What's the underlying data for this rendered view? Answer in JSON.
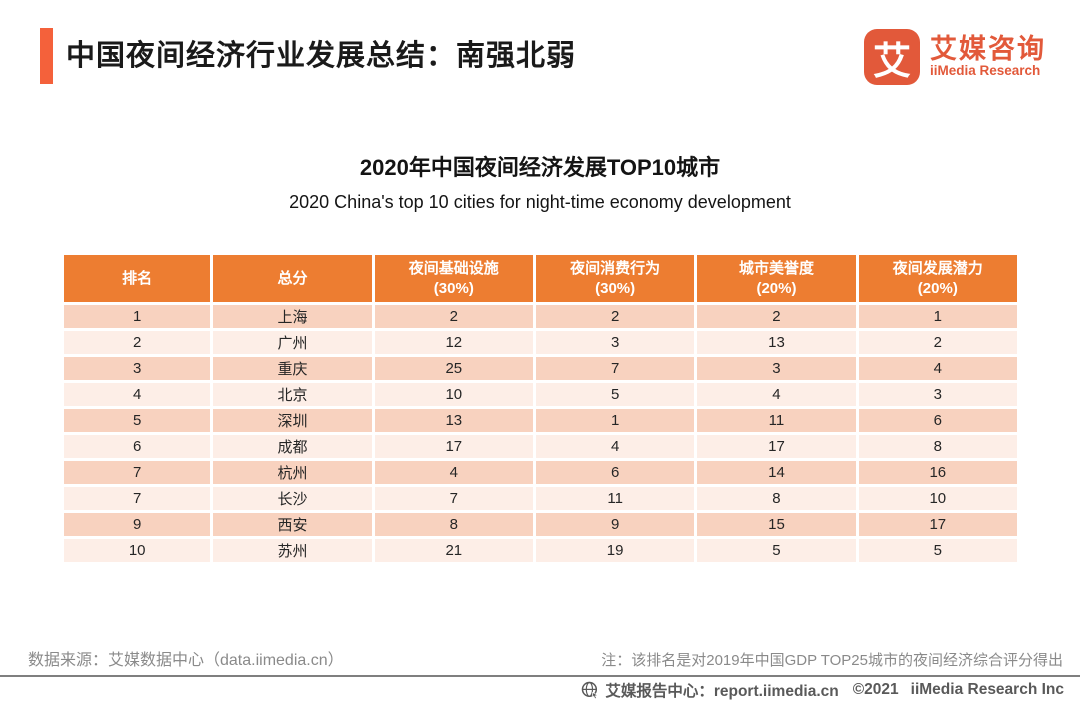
{
  "colors": {
    "accent": "#f4613b",
    "logo": "#e2593a",
    "table_header_bg": "#ed7d31",
    "row_odd": "#f8d2bf",
    "row_even": "#fdeee7",
    "footer_text": "#8a8a8a",
    "bottom_text": "#595959"
  },
  "header": {
    "title": "中国夜间经济行业发展总结：南强北弱",
    "logo": {
      "mark": "艾",
      "name_cn": "艾媒咨询",
      "name_en": "iiMedia Research"
    }
  },
  "chart_data": {
    "type": "table",
    "title": "2020年中国夜间经济发展TOP10城市",
    "subtitle": "2020 China's top 10 cities for night-time economy development",
    "columns": [
      {
        "label": "排名",
        "sub": ""
      },
      {
        "label": "总分",
        "sub": ""
      },
      {
        "label": "夜间基础设施",
        "sub": "(30%)"
      },
      {
        "label": "夜间消费行为",
        "sub": "(30%)"
      },
      {
        "label": "城市美誉度",
        "sub": "(20%)"
      },
      {
        "label": "夜间发展潜力",
        "sub": "(20%)"
      }
    ],
    "rows": [
      [
        "1",
        "上海",
        "2",
        "2",
        "2",
        "1"
      ],
      [
        "2",
        "广州",
        "12",
        "3",
        "13",
        "2"
      ],
      [
        "3",
        "重庆",
        "25",
        "7",
        "3",
        "4"
      ],
      [
        "4",
        "北京",
        "10",
        "5",
        "4",
        "3"
      ],
      [
        "5",
        "深圳",
        "13",
        "1",
        "11",
        "6"
      ],
      [
        "6",
        "成都",
        "17",
        "4",
        "17",
        "8"
      ],
      [
        "7",
        "杭州",
        "4",
        "6",
        "14",
        "16"
      ],
      [
        "7",
        "长沙",
        "7",
        "11",
        "8",
        "10"
      ],
      [
        "9",
        "西安",
        "8",
        "9",
        "15",
        "17"
      ],
      [
        "10",
        "苏州",
        "21",
        "19",
        "5",
        "5"
      ]
    ]
  },
  "footer": {
    "source": "数据来源：艾媒数据中心（data.iimedia.cn）",
    "note": "注：该排名是对2019年中国GDP TOP25城市的夜间经济综合评分得出",
    "report_center": "艾媒报告中心：report.iimedia.cn",
    "copyright": "©2021",
    "company": "iiMedia Research Inc"
  }
}
